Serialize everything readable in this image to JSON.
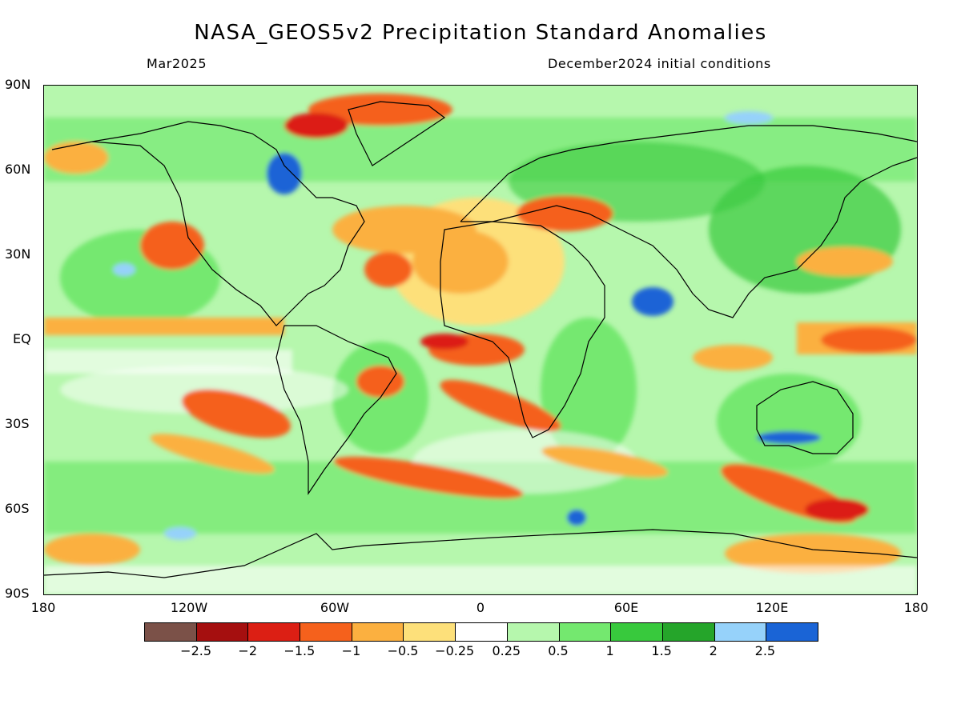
{
  "title": "NASA_GEOS5v2 Precipitation Standard Anomalies",
  "subtitle_left": "Mar2025",
  "subtitle_right": "December2024 initial conditions",
  "lat_labels": [
    "90N",
    "60N",
    "30N",
    "EQ",
    "30S",
    "60S",
    "90S"
  ],
  "lon_labels": [
    "180",
    "120W",
    "60W",
    "0",
    "60E",
    "120E",
    "180"
  ],
  "colorbar": {
    "colors": [
      "#7b5148",
      "#a50f0f",
      "#dc1f14",
      "#f5611c",
      "#fbb040",
      "#fde07a",
      "#ffffff",
      "#b6f7ad",
      "#74e86f",
      "#38c93d",
      "#25a52a",
      "#96d2fa",
      "#1a64d6"
    ],
    "labels": [
      "-2.5",
      "-2",
      "-1.5",
      "-1",
      "-0.5",
      "-0.25",
      "0.25",
      "0.5",
      "1",
      "1.5",
      "2",
      "2.5"
    ]
  },
  "legend_colors": {
    "ocean_base": "#c9f3c1",
    "coastline": "#000000"
  }
}
